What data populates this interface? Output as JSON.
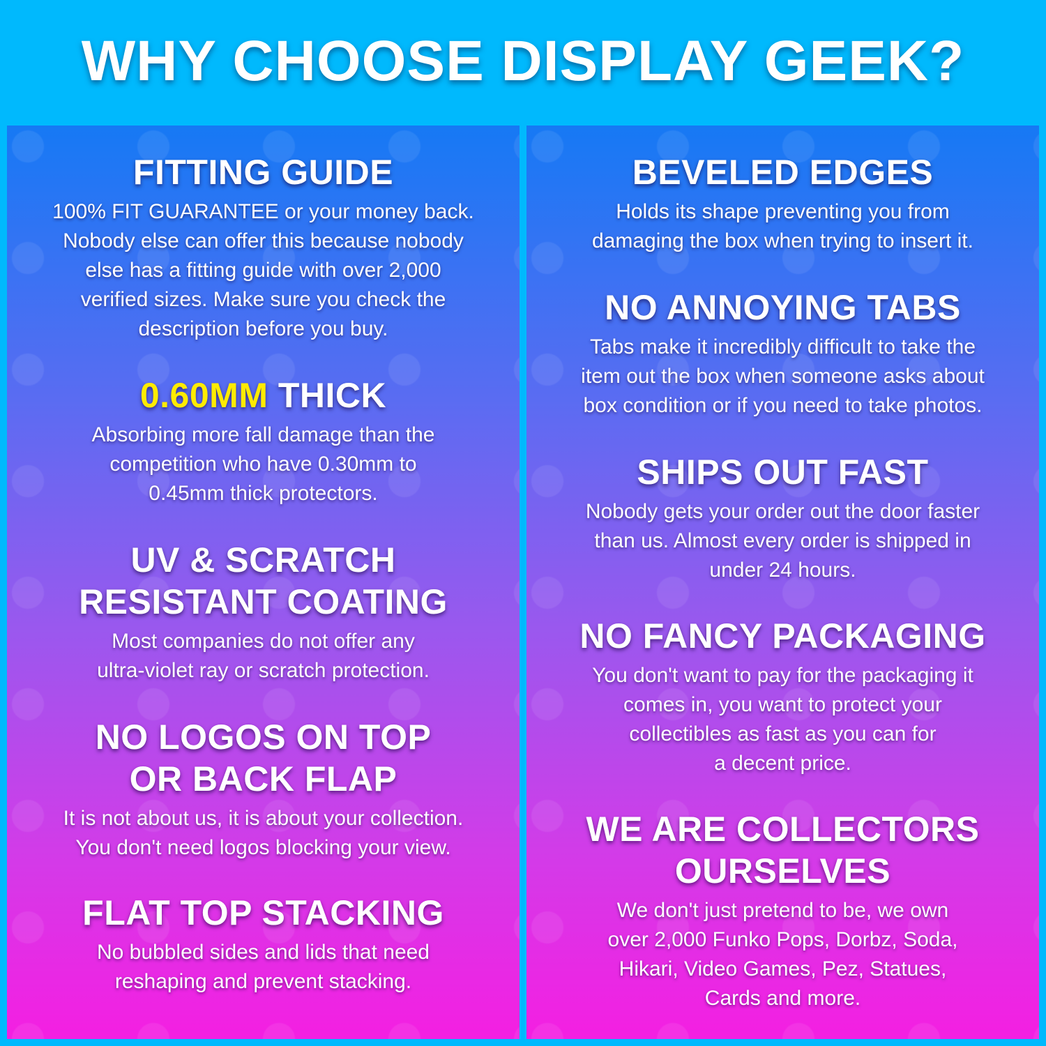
{
  "title": "WHY CHOOSE DISPLAY GEEK?",
  "left": [
    {
      "heading": [
        "FITTING GUIDE"
      ],
      "body": [
        "100% FIT GUARANTEE or your money back.",
        "Nobody else can offer this because nobody",
        "else has a fitting guide with over 2,000",
        "verified sizes. Make sure you check the",
        "description before you buy."
      ]
    },
    {
      "heading_highlight": "0.60MM",
      "heading_rest": " THICK",
      "body": [
        "Absorbing more fall damage than the",
        "competition who have 0.30mm to",
        "0.45mm thick protectors."
      ]
    },
    {
      "heading": [
        "UV & SCRATCH",
        "RESISTANT COATING"
      ],
      "body": [
        "Most companies do not offer any",
        "ultra-violet ray or scratch protection."
      ]
    },
    {
      "heading": [
        "NO LOGOS ON TOP",
        "OR BACK FLAP"
      ],
      "body": [
        "It is not about us, it is about your collection.",
        "You don't need logos blocking your view."
      ]
    },
    {
      "heading": [
        "FLAT TOP STACKING"
      ],
      "body": [
        "No bubbled sides and lids that need",
        "reshaping and prevent stacking."
      ]
    }
  ],
  "right": [
    {
      "heading": [
        "BEVELED EDGES"
      ],
      "body": [
        "Holds its shape preventing you from",
        "damaging the box when trying to insert it."
      ]
    },
    {
      "heading": [
        "NO ANNOYING TABS"
      ],
      "body": [
        "Tabs make it incredibly difficult to take the",
        "item out the box when someone asks about",
        "box condition or if you need to take photos."
      ]
    },
    {
      "heading": [
        "SHIPS OUT FAST"
      ],
      "body": [
        "Nobody gets your order out the door faster",
        "than us. Almost every order is shipped in",
        "under 24 hours."
      ]
    },
    {
      "heading": [
        "NO FANCY PACKAGING"
      ],
      "body": [
        "You don't want to pay for the packaging it",
        "comes in, you want to protect your",
        "collectibles as fast as you can for",
        "a decent price."
      ]
    },
    {
      "heading": [
        "WE ARE COLLECTORS",
        "OURSELVES"
      ],
      "body": [
        "We don't just pretend to be, we own",
        "over 2,000 Funko Pops, Dorbz, Soda,",
        "Hikari, Video Games, Pez, Statues,",
        "Cards and more."
      ]
    }
  ],
  "colors": {
    "background": "#00b9fd",
    "panel_top": "#1679f4",
    "panel_bottom": "#f41fe2",
    "highlight": "#ffeb00"
  }
}
